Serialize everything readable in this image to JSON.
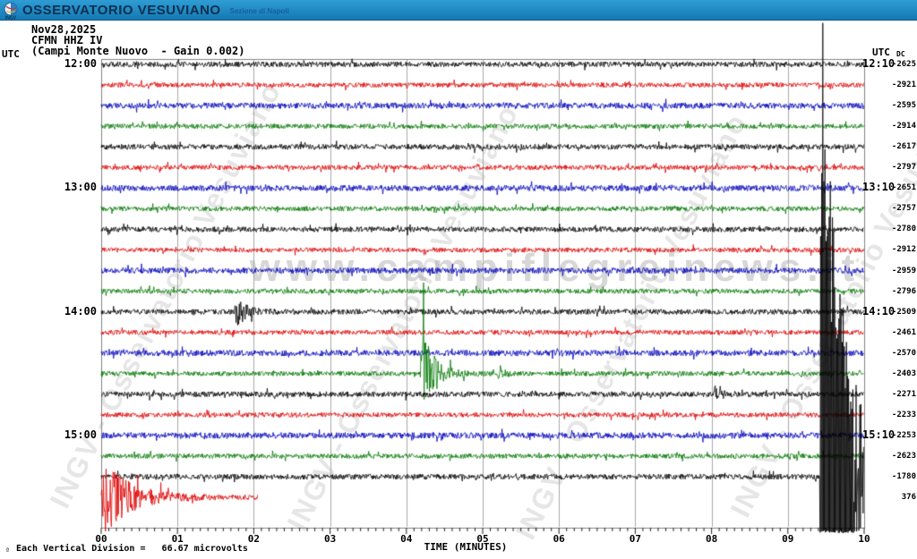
{
  "topbar": {
    "title": "OSSERVATORIO VESUVIANO",
    "subtitle": "Sezione di Napoli",
    "logo": "ingv-logo"
  },
  "header": {
    "date": "Nov28,2025",
    "station": "CFMN HHZ IV",
    "detail": "(Campi Monte Nuovo  - Gain 0.002)"
  },
  "axis": {
    "left_unit": "UTC",
    "right_unit": "UTC",
    "dc_header": "DC",
    "xlabel": "TIME (MINUTES)",
    "x_ticks": [
      "00",
      "01",
      "02",
      "03",
      "04",
      "05",
      "06",
      "07",
      "08",
      "09",
      "10"
    ],
    "x_min": 0,
    "x_max": 10,
    "minor_ticks_per_minute": 10
  },
  "footer": {
    "mark": "ª",
    "text": "Each Vertical Division =   66.67 microvolts"
  },
  "watermarks": {
    "site": "www.campiflegreinews.it",
    "org": "INGV - Osservatorio Vesuviano"
  },
  "colors": {
    "black": "#000000",
    "red": "#dd0000",
    "blue": "#0000bb",
    "green": "#007700",
    "grid": "#a8a8a8",
    "frame": "#808080"
  },
  "chart_data": {
    "type": "line",
    "title": "Helicorder seismogram CFMN HHZ IV (Campi Monte Nuovo - Gain 0.002), Nov28,2025",
    "xlabel": "TIME (MINUTES)",
    "x_range": [
      0,
      10
    ],
    "row_duration_minutes": 10,
    "traces": [
      {
        "row": 1,
        "color": "black",
        "utc_left": "12:00",
        "utc_right": "12:10",
        "dc": -2625,
        "start_min": 0,
        "end_min": 10,
        "events": []
      },
      {
        "row": 2,
        "color": "red",
        "dc": -2921,
        "start_min": 0,
        "end_min": 10,
        "events": []
      },
      {
        "row": 3,
        "color": "blue",
        "dc": -2595,
        "start_min": 0,
        "end_min": 10,
        "events": []
      },
      {
        "row": 4,
        "color": "green",
        "dc": -2914,
        "start_min": 0,
        "end_min": 10,
        "events": []
      },
      {
        "row": 5,
        "color": "black",
        "dc": -2617,
        "start_min": 0,
        "end_min": 10,
        "events": []
      },
      {
        "row": 6,
        "color": "red",
        "dc": -2797,
        "start_min": 0,
        "end_min": 10,
        "events": []
      },
      {
        "row": 7,
        "color": "blue",
        "utc_left": "13:00",
        "utc_right": "13:10",
        "dc": -2651,
        "start_min": 0,
        "end_min": 10,
        "events": []
      },
      {
        "row": 8,
        "color": "green",
        "dc": -2757,
        "start_min": 0,
        "end_min": 10,
        "events": []
      },
      {
        "row": 9,
        "color": "black",
        "dc": -2780,
        "start_min": 0,
        "end_min": 10,
        "events": []
      },
      {
        "row": 10,
        "color": "red",
        "dc": -2912,
        "start_min": 0,
        "end_min": 10,
        "events": []
      },
      {
        "row": 11,
        "color": "blue",
        "dc": -2959,
        "start_min": 0,
        "end_min": 10,
        "events": []
      },
      {
        "row": 12,
        "color": "green",
        "dc": -2796,
        "start_min": 0,
        "end_min": 10,
        "events": []
      },
      {
        "row": 13,
        "color": "black",
        "utc_left": "14:00",
        "utc_right": "14:10",
        "dc": -2509,
        "start_min": 0,
        "end_min": 10,
        "events": [
          {
            "t": 1.75,
            "peak": 20,
            "tau": 0.12
          }
        ]
      },
      {
        "row": 14,
        "color": "red",
        "dc": -2461,
        "start_min": 0,
        "end_min": 10,
        "events": []
      },
      {
        "row": 15,
        "color": "blue",
        "dc": -2570,
        "start_min": 0,
        "end_min": 10,
        "events": []
      },
      {
        "row": 16,
        "color": "green",
        "dc": -2403,
        "start_min": 0,
        "end_min": 10,
        "events": [
          {
            "t": 4.18,
            "peak": 58,
            "tau": 0.16
          },
          {
            "t": 5.2,
            "peak": 14,
            "tau": 0.05
          }
        ]
      },
      {
        "row": 17,
        "color": "black",
        "dc": -2271,
        "start_min": 0,
        "end_min": 10,
        "events": [
          {
            "t": 8.03,
            "peak": 13,
            "tau": 0.07
          }
        ]
      },
      {
        "row": 18,
        "color": "red",
        "dc": -2233,
        "start_min": 0,
        "end_min": 10,
        "events": []
      },
      {
        "row": 19,
        "color": "blue",
        "utc_left": "15:00",
        "utc_right": "15:10",
        "dc": -2253,
        "base_amp": 3.4,
        "start_min": 0,
        "end_min": 10,
        "events": []
      },
      {
        "row": 20,
        "color": "green",
        "dc": -2623,
        "start_min": 0,
        "end_min": 10,
        "events": []
      },
      {
        "row": 21,
        "color": "black",
        "dc": -1780,
        "start_min": 0,
        "end_min": 10,
        "events": [
          {
            "t": 9.42,
            "peak": 620,
            "tau": 0.26
          }
        ]
      },
      {
        "row": 22,
        "color": "red",
        "dc": 376,
        "start_min": 0,
        "end_min": 2.05,
        "events": [
          {
            "t": 0,
            "peak": 45,
            "tau": 0.35
          }
        ]
      }
    ]
  }
}
